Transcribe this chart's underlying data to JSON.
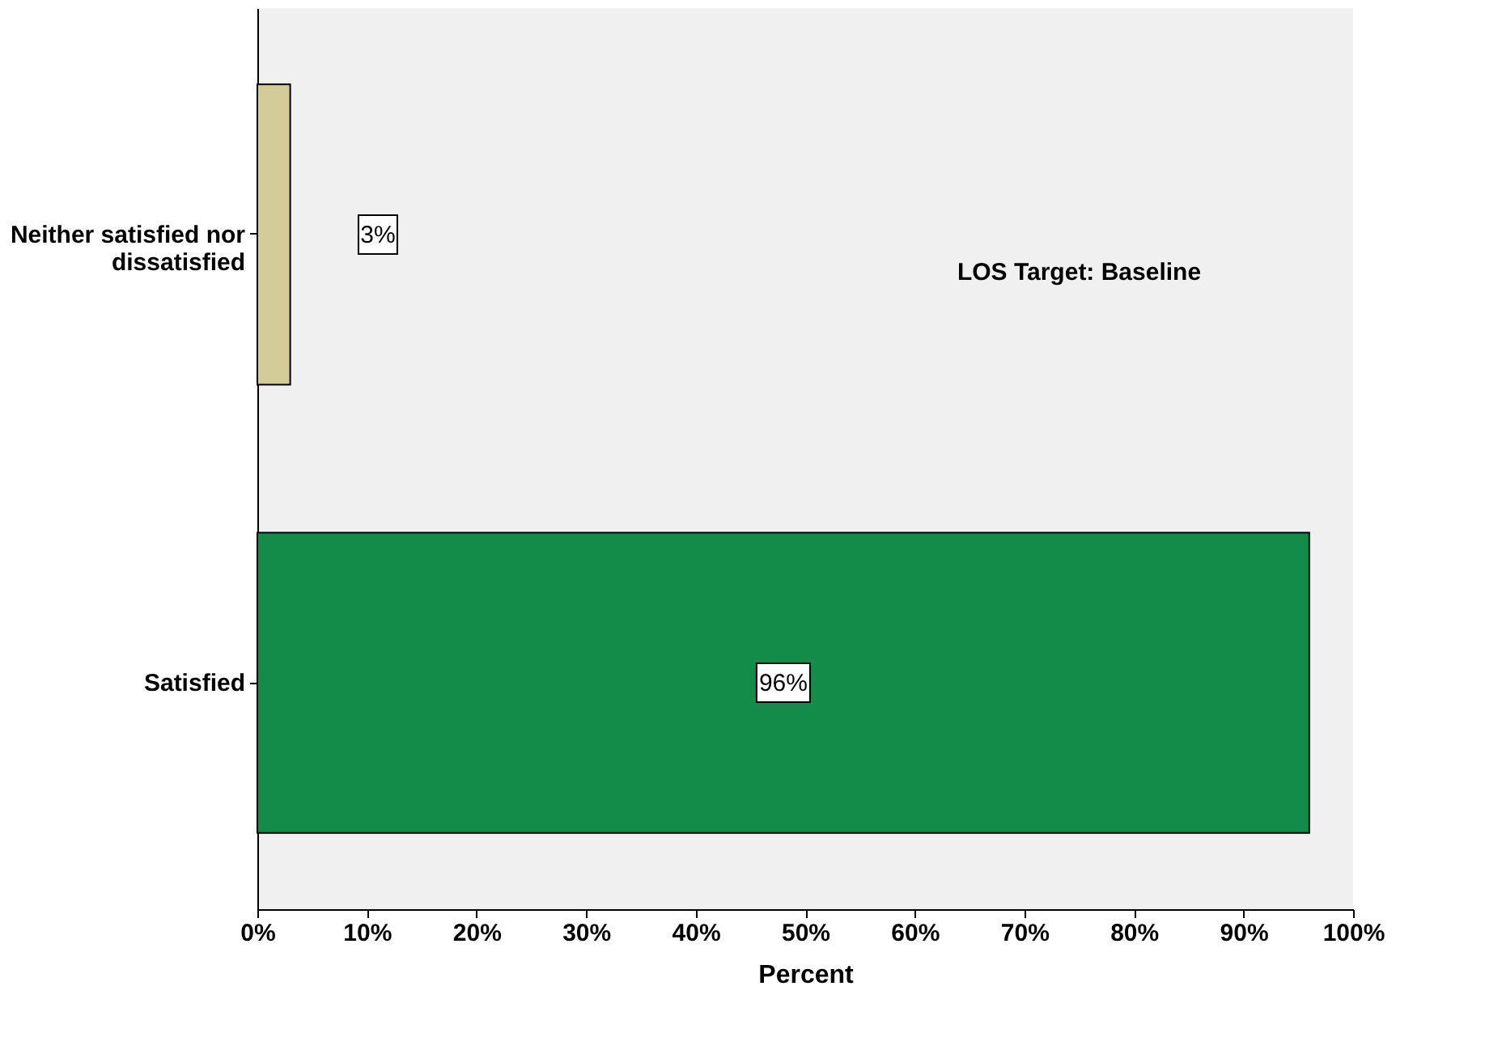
{
  "chart_data": {
    "type": "bar",
    "orientation": "horizontal",
    "xlabel": "Percent",
    "categories": [
      "Neither satisfied nor dissatisfied",
      "Satisfied"
    ],
    "values": [
      3,
      96
    ],
    "colors": [
      "#d3cc98",
      "#128c48"
    ],
    "value_labels": [
      "3%",
      "96%"
    ],
    "xlim": [
      0,
      100
    ],
    "xticks": [
      {
        "value": 0,
        "label": "0%"
      },
      {
        "value": 10,
        "label": "10%"
      },
      {
        "value": 20,
        "label": "20%"
      },
      {
        "value": 30,
        "label": "30%"
      },
      {
        "value": 40,
        "label": "40%"
      },
      {
        "value": 50,
        "label": "50%"
      },
      {
        "value": 60,
        "label": "60%"
      },
      {
        "value": 70,
        "label": "70%"
      },
      {
        "value": 80,
        "label": "80%"
      },
      {
        "value": 90,
        "label": "90%"
      },
      {
        "value": 100,
        "label": "100%"
      }
    ],
    "annotations": [
      "LOS Target: Baseline"
    ],
    "grid": false
  }
}
